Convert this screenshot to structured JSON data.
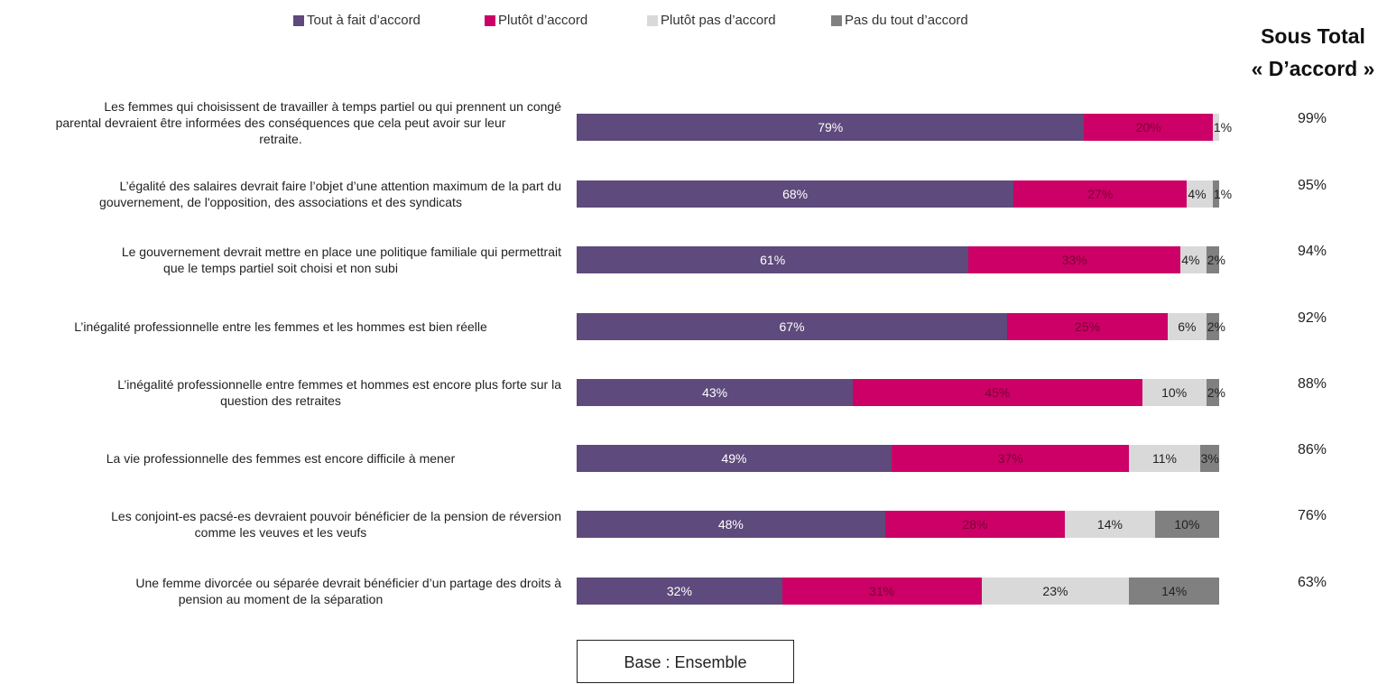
{
  "legend": [
    {
      "label": "Tout à fait d’accord",
      "color": "#5e4a7c"
    },
    {
      "label": "Plutôt d’accord",
      "color": "#cc0066"
    },
    {
      "label": "Plutôt pas d’accord",
      "color": "#d9d9d9"
    },
    {
      "label": "Pas du tout d’accord",
      "color": "#808080"
    }
  ],
  "subtotal_header": {
    "line1": "Sous Total",
    "line2": "« D’accord »"
  },
  "base_note": "Base : Ensemble",
  "chart_data": {
    "type": "bar",
    "orientation": "horizontal",
    "stacked": true,
    "xlim": [
      0,
      100
    ],
    "categories": [
      [
        "Les femmes qui choisissent de travailler à temps partiel ou qui prennent un congé",
        "parental devraient être informées des conséquences que cela peut avoir sur leur",
        "retraite."
      ],
      [
        "L’égalité des salaires devrait faire l’objet d’une attention maximum de la part du",
        "gouvernement, de l'opposition, des associations et des syndicats"
      ],
      [
        "Le gouvernement devrait mettre en place une politique familiale qui permettrait",
        "que le temps partiel soit choisi et non subi"
      ],
      [
        "L’inégalité professionnelle entre les femmes et les hommes est bien réelle"
      ],
      [
        "L’inégalité professionnelle entre femmes et hommes est encore plus forte sur la",
        "question des retraites"
      ],
      [
        "La vie professionnelle des femmes est encore difficile à mener"
      ],
      [
        "Les conjoint-es pacsé-es devraient pouvoir bénéficier de la pension de réversion",
        "comme les veuves et les veufs"
      ],
      [
        "Une femme divorcée ou séparée devrait bénéficier d’un partage des droits à",
        "pension au moment de la séparation"
      ]
    ],
    "series": [
      {
        "name": "Tout à fait d’accord",
        "color": "#5e4a7c",
        "text_color": "#ffffff",
        "values": [
          79,
          68,
          61,
          67,
          43,
          49,
          48,
          32
        ]
      },
      {
        "name": "Plutôt d’accord",
        "color": "#cc0066",
        "text_color": "#7a0035",
        "values": [
          20,
          27,
          33,
          25,
          45,
          37,
          28,
          31
        ]
      },
      {
        "name": "Plutôt pas d’accord",
        "color": "#d9d9d9",
        "text_color": "#222222",
        "values": [
          1,
          4,
          4,
          6,
          10,
          11,
          14,
          23
        ]
      },
      {
        "name": "Pas du tout d’accord",
        "color": "#808080",
        "text_color": "#222222",
        "values": [
          0,
          1,
          2,
          2,
          2,
          3,
          10,
          14
        ]
      }
    ],
    "value_labels": [
      [
        "79%",
        "20%",
        "1%",
        ""
      ],
      [
        "68%",
        "27%",
        "4%",
        "1%"
      ],
      [
        "61%",
        "33%",
        "4%",
        "2%"
      ],
      [
        "67%",
        "25%",
        "6%",
        "2%"
      ],
      [
        "43%",
        "45%",
        "10%",
        "2%"
      ],
      [
        "49%",
        "37%",
        "11%",
        "3%"
      ],
      [
        "48%",
        "28%",
        "14%",
        "10%"
      ],
      [
        "32%",
        "31%",
        "23%",
        "14%"
      ]
    ],
    "subtotals": [
      "99%",
      "95%",
      "94%",
      "92%",
      "88%",
      "86%",
      "76%",
      "63%"
    ]
  }
}
